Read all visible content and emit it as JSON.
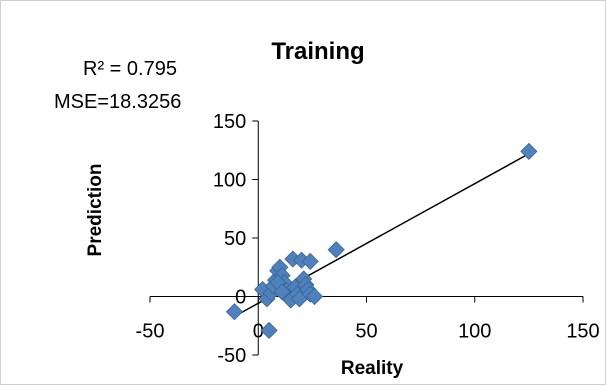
{
  "chart_data": {
    "type": "scatter",
    "title": "Training",
    "xlabel": "Reality",
    "ylabel": "Prediction",
    "xlim": [
      -50,
      150
    ],
    "ylim": [
      -50,
      150
    ],
    "xticks": [
      "-50",
      "0",
      "50",
      "100",
      "150"
    ],
    "yticks": [
      "-50",
      "0",
      "50",
      "100",
      "150"
    ],
    "annotations": [
      "R² = 0.795",
      "MSE=18.3256"
    ],
    "marker_color": "#4F81BD",
    "trendline_color": "#000000",
    "trendline": {
      "x": [
        -10,
        125
      ],
      "y": [
        -16,
        122
      ]
    },
    "grid": false,
    "legend": "none",
    "points": [
      {
        "x": -11,
        "y": -13
      },
      {
        "x": 5,
        "y": -29
      },
      {
        "x": 2,
        "y": 6
      },
      {
        "x": 4,
        "y": -2
      },
      {
        "x": 6,
        "y": 3
      },
      {
        "x": 7,
        "y": 9
      },
      {
        "x": 8,
        "y": 14
      },
      {
        "x": 9,
        "y": 22
      },
      {
        "x": 10,
        "y": 25
      },
      {
        "x": 11,
        "y": 18
      },
      {
        "x": 12,
        "y": 12
      },
      {
        "x": 13,
        "y": 5
      },
      {
        "x": 14,
        "y": 0
      },
      {
        "x": 15,
        "y": -3
      },
      {
        "x": 16,
        "y": 32
      },
      {
        "x": 17,
        "y": 8
      },
      {
        "x": 18,
        "y": 2
      },
      {
        "x": 19,
        "y": -2
      },
      {
        "x": 20,
        "y": 31
      },
      {
        "x": 21,
        "y": 15
      },
      {
        "x": 22,
        "y": 10
      },
      {
        "x": 23,
        "y": 6
      },
      {
        "x": 24,
        "y": 30
      },
      {
        "x": 24,
        "y": 2
      },
      {
        "x": 26,
        "y": 0
      },
      {
        "x": 9,
        "y": 12
      },
      {
        "x": 11,
        "y": 4
      },
      {
        "x": 36,
        "y": 40
      },
      {
        "x": 125,
        "y": 124
      }
    ]
  }
}
